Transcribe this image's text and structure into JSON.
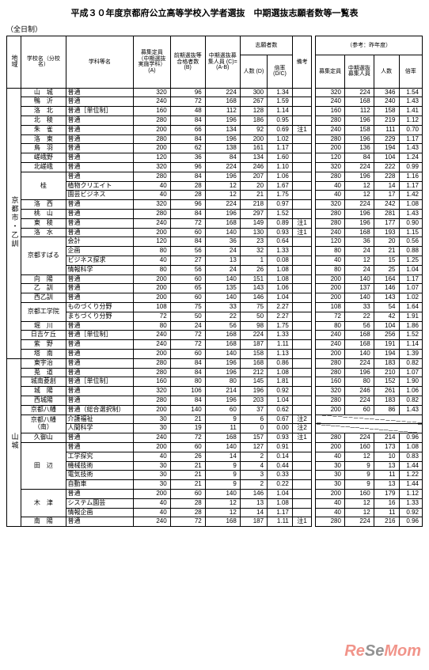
{
  "title": "平成３０年度京都府公立高等学校入学者選抜　中期選抜志願者数等一覧表",
  "mode": "（全日制）",
  "ref_label": "（参考：昨年度）",
  "headers": {
    "region": "地域",
    "school": "学校名（分校名）",
    "dept": "学科等名",
    "capacity": "募集定員（中期選抜実施学科）(A)",
    "early": "前期選抜等合格者数 (B)",
    "mid_cap": "中期選抜募集人員 (C)=(A-B)",
    "applicants": "志願者数",
    "app_n": "人数 (D)",
    "app_r": "倍率 (D/C)",
    "remark": "備考",
    "ref_cap": "募集定員",
    "ref_mid": "中期選抜募集人員",
    "ref_app": "志願者数",
    "ref_n": "人数",
    "ref_r": "倍率"
  },
  "regions": [
    {
      "name": "京都市・乙訓",
      "rows": [
        {
          "school": "山　城",
          "dept": "普通",
          "cap": 320,
          "early": 96,
          "mid": 224,
          "n": 300,
          "r": "1.34",
          "rk": "",
          "rc": 320,
          "rm": 224,
          "rn": 346,
          "rr": "1.54"
        },
        {
          "school": "鴨　沂",
          "dept": "普通",
          "cap": 240,
          "early": 72,
          "mid": 168,
          "n": 267,
          "r": "1.59",
          "rk": "",
          "rc": 240,
          "rm": 168,
          "rn": 240,
          "rr": "1.43"
        },
        {
          "school": "洛　北",
          "dept": "普通［単位制］",
          "cap": 160,
          "early": 48,
          "mid": 112,
          "n": 128,
          "r": "1.14",
          "rk": "",
          "rc": 160,
          "rm": 112,
          "rn": 158,
          "rr": "1.41"
        },
        {
          "school": "北　稜",
          "dept": "普通",
          "cap": 280,
          "early": 84,
          "mid": 196,
          "n": 186,
          "r": "0.95",
          "rk": "",
          "rc": 280,
          "rm": 196,
          "rn": 219,
          "rr": "1.12"
        },
        {
          "school": "朱　雀",
          "dept": "普通",
          "cap": 200,
          "early": 66,
          "mid": 134,
          "n": 92,
          "r": "0.69",
          "rk": "注1",
          "rc": 240,
          "rm": 158,
          "rn": 111,
          "rr": "0.70"
        },
        {
          "school": "洛　東",
          "dept": "普通",
          "cap": 280,
          "early": 84,
          "mid": 196,
          "n": 200,
          "r": "1.02",
          "rk": "",
          "rc": 280,
          "rm": 196,
          "rn": 229,
          "rr": "1.17"
        },
        {
          "school": "鳥　羽",
          "dept": "普通",
          "cap": 200,
          "early": 62,
          "mid": 138,
          "n": 161,
          "r": "1.17",
          "rk": "",
          "rc": 200,
          "rm": 136,
          "rn": 194,
          "rr": "1.43"
        },
        {
          "school": "嵯峨野",
          "dept": "普通",
          "cap": 120,
          "early": 36,
          "mid": 84,
          "n": 134,
          "r": "1.60",
          "rk": "",
          "rc": 120,
          "rm": 84,
          "rn": 104,
          "rr": "1.24"
        },
        {
          "school": "北嵯峨",
          "dept": "普通",
          "cap": 320,
          "early": 96,
          "mid": 224,
          "n": 246,
          "r": "1.10",
          "rk": "",
          "rc": 320,
          "rm": 224,
          "rn": 222,
          "rr": "0.99"
        },
        {
          "school": "桂",
          "dept": "普通",
          "cap": 280,
          "early": 84,
          "mid": 196,
          "n": 207,
          "r": "1.06",
          "rk": "",
          "rc": 280,
          "rm": 196,
          "rn": 228,
          "rr": "1.16",
          "rowspan": 3
        },
        {
          "school": "",
          "dept": "植物クリエイト",
          "cap": 40,
          "early": 28,
          "mid": 12,
          "n": 20,
          "r": "1.67",
          "rk": "",
          "rc": 40,
          "rm": 12,
          "rn": 14,
          "rr": "1.17"
        },
        {
          "school": "",
          "dept": "園芸ビジネス",
          "cap": 40,
          "early": 28,
          "mid": 12,
          "n": 21,
          "r": "1.75",
          "rk": "",
          "rc": 40,
          "rm": 12,
          "rn": 17,
          "rr": "1.42"
        },
        {
          "school": "洛　西",
          "dept": "普通",
          "cap": 320,
          "early": 96,
          "mid": 224,
          "n": 218,
          "r": "0.97",
          "rk": "",
          "rc": 320,
          "rm": 224,
          "rn": 242,
          "rr": "1.08"
        },
        {
          "school": "桃　山",
          "dept": "普通",
          "cap": 280,
          "early": 84,
          "mid": 196,
          "n": 297,
          "r": "1.52",
          "rk": "",
          "rc": 280,
          "rm": 196,
          "rn": 281,
          "rr": "1.43"
        },
        {
          "school": "東　稜",
          "dept": "普通",
          "cap": 240,
          "early": 72,
          "mid": 168,
          "n": 149,
          "r": "0.89",
          "rk": "注1",
          "rc": 280,
          "rm": 196,
          "rn": 177,
          "rr": "0.90"
        },
        {
          "school": "洛　水",
          "dept": "普通",
          "cap": 200,
          "early": 60,
          "mid": 140,
          "n": 130,
          "r": "0.93",
          "rk": "注1",
          "rc": 240,
          "rm": 168,
          "rn": 193,
          "rr": "1.15"
        },
        {
          "school": "京都すばる",
          "dept": "会計",
          "cap": 120,
          "early": 84,
          "mid": 36,
          "n": 23,
          "r": "0.64",
          "rk": "",
          "rc": 120,
          "rm": 36,
          "rn": 20,
          "rr": "0.56",
          "rowspan": 4
        },
        {
          "school": "",
          "dept": "企画",
          "cap": 80,
          "early": 56,
          "mid": 24,
          "n": 32,
          "r": "1.33",
          "rk": "",
          "rc": 80,
          "rm": 24,
          "rn": 21,
          "rr": "0.88"
        },
        {
          "school": "",
          "dept": "ビジネス探求",
          "cap": 40,
          "early": 27,
          "mid": 13,
          "n": 1,
          "r": "0.08",
          "rk": "",
          "rc": 40,
          "rm": 12,
          "rn": 15,
          "rr": "1.25"
        },
        {
          "school": "",
          "dept": "情報科学",
          "cap": 80,
          "early": 56,
          "mid": 24,
          "n": 26,
          "r": "1.08",
          "rk": "",
          "rc": 80,
          "rm": 24,
          "rn": 25,
          "rr": "1.04"
        },
        {
          "school": "向　陽",
          "dept": "普通",
          "cap": 200,
          "early": 60,
          "mid": 140,
          "n": 151,
          "r": "1.08",
          "rk": "",
          "rc": 200,
          "rm": 140,
          "rn": 164,
          "rr": "1.17"
        },
        {
          "school": "乙　訓",
          "dept": "普通",
          "cap": 200,
          "early": 65,
          "mid": 135,
          "n": 143,
          "r": "1.06",
          "rk": "",
          "rc": 200,
          "rm": 137,
          "rn": 146,
          "rr": "1.07"
        },
        {
          "school": "西乙訓",
          "dept": "普通",
          "cap": 200,
          "early": 60,
          "mid": 140,
          "n": 146,
          "r": "1.04",
          "rk": "",
          "rc": 200,
          "rm": 140,
          "rn": 143,
          "rr": "1.02"
        },
        {
          "school": "京都工学院",
          "dept": "ものづくり分野",
          "cap": 108,
          "early": 75,
          "mid": 33,
          "n": 75,
          "r": "2.27",
          "rk": "",
          "rc": 108,
          "rm": 33,
          "rn": 54,
          "rr": "1.64",
          "rowspan": 2,
          "dept_prefix": "プロジェクト工学"
        },
        {
          "school": "",
          "dept": "まちづくり分野",
          "cap": 72,
          "early": 50,
          "mid": 22,
          "n": 50,
          "r": "2.27",
          "rk": "",
          "rc": 72,
          "rm": 22,
          "rn": 42,
          "rr": "1.91"
        },
        {
          "school": "堀　川",
          "dept": "普通",
          "cap": 80,
          "early": 24,
          "mid": 56,
          "n": 98,
          "r": "1.75",
          "rk": "",
          "rc": 80,
          "rm": 56,
          "rn": 104,
          "rr": "1.86"
        },
        {
          "school": "日吉ケ丘",
          "dept": "普通［単位制］",
          "cap": 240,
          "early": 72,
          "mid": 168,
          "n": 224,
          "r": "1.33",
          "rk": "",
          "rc": 240,
          "rm": 168,
          "rn": 256,
          "rr": "1.52"
        },
        {
          "school": "紫　野",
          "dept": "普通",
          "cap": 240,
          "early": 72,
          "mid": 168,
          "n": 187,
          "r": "1.11",
          "rk": "",
          "rc": 240,
          "rm": 168,
          "rn": 191,
          "rr": "1.14"
        },
        {
          "school": "塔　南",
          "dept": "普通",
          "cap": 200,
          "early": 60,
          "mid": 140,
          "n": 158,
          "r": "1.13",
          "rk": "",
          "rc": 200,
          "rm": 140,
          "rn": 194,
          "rr": "1.39"
        }
      ]
    },
    {
      "name": "山城",
      "rows": [
        {
          "school": "東宇治",
          "dept": "普通",
          "cap": 280,
          "early": 84,
          "mid": 196,
          "n": 168,
          "r": "0.86",
          "rk": "",
          "rc": 280,
          "rm": 224,
          "rn": 183,
          "rr": "0.82"
        },
        {
          "school": "莵　道",
          "dept": "普通",
          "cap": 280,
          "early": 84,
          "mid": 196,
          "n": 212,
          "r": "1.08",
          "rk": "",
          "rc": 280,
          "rm": 196,
          "rn": 210,
          "rr": "1.07"
        },
        {
          "school": "城南菱創",
          "dept": "普通［単位制］",
          "cap": 160,
          "early": 80,
          "mid": 80,
          "n": 145,
          "r": "1.81",
          "rk": "",
          "rc": 160,
          "rm": 80,
          "rn": 152,
          "rr": "1.90"
        },
        {
          "school": "城　陽",
          "dept": "普通",
          "cap": 320,
          "early": 106,
          "mid": 214,
          "n": 196,
          "r": "0.92",
          "rk": "",
          "rc": 320,
          "rm": 246,
          "rn": 261,
          "rr": "1.06"
        },
        {
          "school": "西城陽",
          "dept": "普通",
          "cap": 280,
          "early": 84,
          "mid": 196,
          "n": 203,
          "r": "1.04",
          "rk": "",
          "rc": 280,
          "rm": 224,
          "rn": 183,
          "rr": "0.82"
        },
        {
          "school": "京都八幡",
          "dept": "普通（総合選択制）",
          "cap": 200,
          "early": 140,
          "mid": 60,
          "n": 37,
          "r": "0.62",
          "rk": "",
          "rc": 200,
          "rm": 60,
          "rn": 86,
          "rr": "1.43"
        },
        {
          "school": "京都八幡（南）",
          "dept": "介護福祉",
          "cap": 30,
          "early": 21,
          "mid": 9,
          "n": 6,
          "r": "0.67",
          "rk": "注2",
          "rc": "",
          "rm": "",
          "rn": "",
          "rr": "",
          "diag": true,
          "rowspan": 2
        },
        {
          "school": "",
          "dept": "人間科学",
          "cap": 30,
          "early": 19,
          "mid": 11,
          "n": 0,
          "r": "0.00",
          "rk": "注2",
          "rc": "",
          "rm": "",
          "rn": "",
          "rr": "",
          "diag": true
        },
        {
          "school": "久御山",
          "dept": "普通",
          "cap": 240,
          "early": 72,
          "mid": 168,
          "n": 157,
          "r": "0.93",
          "rk": "注1",
          "rc": 280,
          "rm": 224,
          "rn": 214,
          "rr": "0.96"
        },
        {
          "school": "田　辺",
          "dept": "普通",
          "cap": 200,
          "early": 60,
          "mid": 140,
          "n": 127,
          "r": "0.91",
          "rk": "",
          "rc": 200,
          "rm": 160,
          "rn": 173,
          "rr": "1.08",
          "rowspan": 5
        },
        {
          "school": "",
          "dept": "工学探究",
          "cap": 40,
          "early": 26,
          "mid": 14,
          "n": 2,
          "r": "0.14",
          "rk": "",
          "rc": 40,
          "rm": 12,
          "rn": 10,
          "rr": "0.83"
        },
        {
          "school": "",
          "dept": "機械技術",
          "cap": 30,
          "early": 21,
          "mid": 9,
          "n": 4,
          "r": "0.44",
          "rk": "",
          "rc": 30,
          "rm": 9,
          "rn": 13,
          "rr": "1.44"
        },
        {
          "school": "",
          "dept": "電気技術",
          "cap": 30,
          "early": 21,
          "mid": 9,
          "n": 3,
          "r": "0.33",
          "rk": "",
          "rc": 30,
          "rm": 9,
          "rn": 11,
          "rr": "1.22"
        },
        {
          "school": "",
          "dept": "自動車",
          "cap": 30,
          "early": 21,
          "mid": 9,
          "n": 2,
          "r": "0.22",
          "rk": "",
          "rc": 30,
          "rm": 9,
          "rn": 13,
          "rr": "1.44"
        },
        {
          "school": "木　津",
          "dept": "普通",
          "cap": 200,
          "early": 60,
          "mid": 140,
          "n": 146,
          "r": "1.04",
          "rk": "",
          "rc": 200,
          "rm": 160,
          "rn": 179,
          "rr": "1.12",
          "rowspan": 3
        },
        {
          "school": "",
          "dept": "システム園芸",
          "cap": 40,
          "early": 28,
          "mid": 12,
          "n": 13,
          "r": "1.08",
          "rk": "",
          "rc": 40,
          "rm": 12,
          "rn": 16,
          "rr": "1.33"
        },
        {
          "school": "",
          "dept": "情報企画",
          "cap": 40,
          "early": 28,
          "mid": 12,
          "n": 14,
          "r": "1.17",
          "rk": "",
          "rc": 40,
          "rm": 12,
          "rn": 11,
          "rr": "0.92"
        },
        {
          "school": "南　陽",
          "dept": "普通",
          "cap": 240,
          "early": 72,
          "mid": 168,
          "n": 187,
          "r": "1.11",
          "rk": "注1",
          "rc": 280,
          "rm": 224,
          "rn": 216,
          "rr": "0.96"
        }
      ]
    }
  ]
}
